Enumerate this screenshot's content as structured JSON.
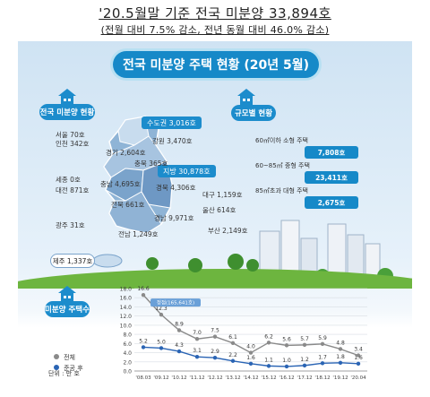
{
  "headline": "'20.5월말 기준 전국 미분양 33,894호",
  "subline": "(전월 대비 7.5% 감소, 전년 동월 대비 46.0% 감소)",
  "banner_title": "전국 미분양 주택 현황 (20년 5월)",
  "sections": {
    "national": "전국 미분양 현황",
    "size": "규모별 현황",
    "trend": "미분양 주택수"
  },
  "map": {
    "metro_tag": "수도권 3,016호",
    "local_tag": "지방 30,878호",
    "jeju": "제주 1,337호",
    "regions": [
      {
        "label": "서울 70호"
      },
      {
        "label": "인천 342호"
      },
      {
        "label": "경기 2,604호"
      },
      {
        "label": "강원 3,470호"
      },
      {
        "label": "충북 365호"
      },
      {
        "label": "세종 0호"
      },
      {
        "label": "대전 871호"
      },
      {
        "label": "충남 4,695호"
      },
      {
        "label": "경북 4,306호"
      },
      {
        "label": "대구 1,159호"
      },
      {
        "label": "전북 661호"
      },
      {
        "label": "울산 614호"
      },
      {
        "label": "경남 9,971호"
      },
      {
        "label": "광주 31호"
      },
      {
        "label": "부산 2,149호"
      },
      {
        "label": "전남 1,249호"
      }
    ]
  },
  "size_breakdown": [
    {
      "label": "60㎡이하 소형 주택",
      "value": "7,808호"
    },
    {
      "label": "60~85㎡ 중형 주택",
      "value": "23,411호"
    },
    {
      "label": "85㎡초과 대형 주택",
      "value": "2,675호"
    }
  ],
  "legend": {
    "total": "전체",
    "after": "준공 후",
    "unit": "단위 : 만 호"
  },
  "colors": {
    "total": "#8a8a8a",
    "after": "#2a64b4",
    "accent": "#1689c8"
  },
  "chart_data": {
    "type": "line",
    "categories": [
      "'08.03",
      "'09.12",
      "'10.12",
      "'11.12",
      "'12.12",
      "'13.12",
      "'14.12",
      "'15.12",
      "'16.12",
      "'17.12",
      "'18.12",
      "'19.12",
      "'20.04"
    ],
    "series": [
      {
        "name": "전체",
        "values": [
          16.6,
          12.3,
          8.9,
          7.0,
          7.5,
          6.1,
          4.0,
          6.2,
          5.6,
          5.7,
          5.9,
          4.8,
          3.4
        ]
      },
      {
        "name": "준공 후",
        "values": [
          5.2,
          5.0,
          4.3,
          3.1,
          2.9,
          2.2,
          1.6,
          1.1,
          1.0,
          1.2,
          1.7,
          1.8,
          1.6
        ]
      }
    ],
    "ylim": [
      0,
      18
    ],
    "yticks": [
      "0.0",
      "2.0",
      "4.0",
      "6.0",
      "8.0",
      "10.0",
      "12.0",
      "14.0",
      "16.0",
      "18.0"
    ],
    "peak_annotation": "정점(165,641호)",
    "grid": true
  }
}
